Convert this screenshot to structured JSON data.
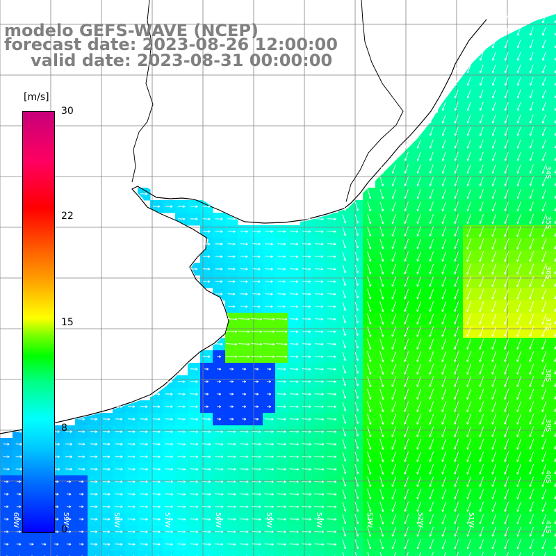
{
  "header": {
    "model_line": "modelo GEFS-WAVE (NCEP)",
    "forecast_line": "forecast date: 2023-08-26 12:00:00",
    "valid_line": "valid date: 2023-08-31 00:00:00"
  },
  "colorbar": {
    "unit": "[m/s]",
    "ticks": [
      "0",
      "8",
      "15",
      "22",
      "30"
    ],
    "min": 0,
    "max": 30
  },
  "map": {
    "lat_labels": [
      "34S",
      "35S",
      "36S",
      "37S",
      "38S",
      "39S",
      "40S",
      "41S"
    ],
    "lon_labels": [
      "60W",
      "59W",
      "58W",
      "57W",
      "56W",
      "55W",
      "54W",
      "53W",
      "52W",
      "51W"
    ],
    "colors": {
      "land": "#ffffff",
      "coast": "#000000",
      "grid": "#808080",
      "arrow": "#ffffff",
      "header_text": "#808080"
    }
  }
}
